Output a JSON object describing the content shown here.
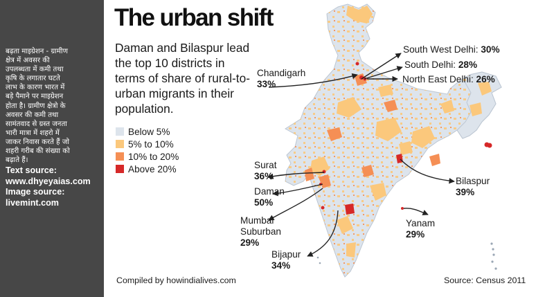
{
  "sidebar": {
    "text_hindi": "बढ़ता माइग्रेशन - ग्रामीण\nक्षेत्र में अवसर की\nउपलब्धता में कमी तथा\nकृषि के लगातार घटते\nलाभ के कारण भारत में\nबड़े पैमाने पर माइग्रेशन\nहोता है। ग्रामीण क्षेत्रो के\nअवसर की कमी तथा\nसामंतवाद से ग्रस्त जनता\nभारी मात्रा में शहरो में\nजाकर निवास करते हैं जो\nशहरी गरीब की संख्या को\nबढ़ाते हैं।",
    "text_source": "Text source:",
    "text_source_url": "www.dhyeyaias.com",
    "image_source": "Image source:",
    "image_source_url": "livemint.com"
  },
  "title": "The urban shift",
  "subtitle": "Daman and Bilaspur lead the top 10 districts in terms of share of rural-to-urban migrants in their population.",
  "legend": [
    {
      "label": "Below 5%",
      "color": "#dde4ec"
    },
    {
      "label": "5% to 10%",
      "color": "#fbc87c"
    },
    {
      "label": "10% to 20%",
      "color": "#f58f55"
    },
    {
      "label": "Above 20%",
      "color": "#d62828"
    }
  ],
  "districts": [
    {
      "name": "South West Delhi",
      "value": "30%"
    },
    {
      "name": "South Delhi",
      "value": "28%"
    },
    {
      "name": "North East Delhi",
      "value": "26%"
    },
    {
      "name": "Chandigarh",
      "value": "33%"
    },
    {
      "name": "Surat",
      "value": "36%"
    },
    {
      "name": "Daman",
      "value": "50%"
    },
    {
      "name": "Mumbai Suburban",
      "value": "29%"
    },
    {
      "name": "Bijapur",
      "value": "34%"
    },
    {
      "name": "Bilaspur",
      "value": "39%"
    },
    {
      "name": "Yanam",
      "value": "29%"
    }
  ],
  "footer": {
    "compiled": "Compiled by howindialives.com",
    "source": "Source: Census 2011"
  }
}
